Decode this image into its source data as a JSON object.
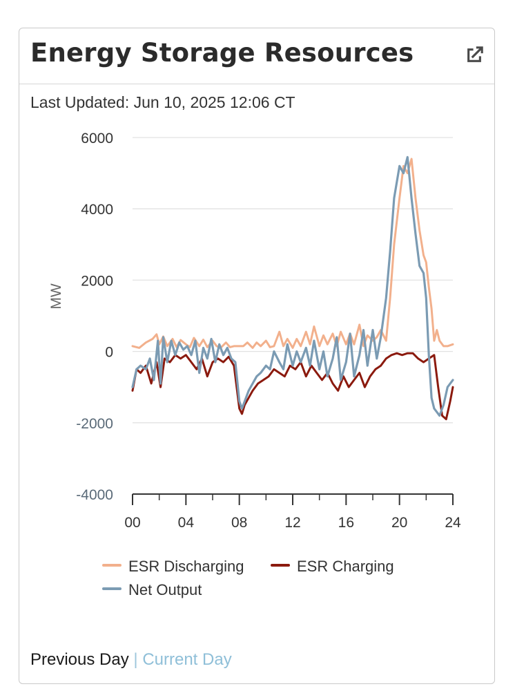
{
  "header": {
    "title": "Energy Storage Resources",
    "popout_icon": "external-link-icon"
  },
  "last_updated": "Last Updated: Jun 10, 2025 12:06 CT",
  "footer": {
    "previous_day": "Previous Day",
    "separator": "|",
    "current_day": "Current Day"
  },
  "chart_data": {
    "type": "line",
    "title": "",
    "xlabel": "",
    "ylabel": "MW",
    "xlim": [
      0,
      24
    ],
    "ylim": [
      -4000,
      6000
    ],
    "x_ticks": [
      "00",
      "04",
      "08",
      "12",
      "16",
      "20",
      "24"
    ],
    "y_ticks": [
      "6000",
      "4000",
      "2000",
      "0",
      "-2000",
      "-4000"
    ],
    "grid": "horizontal",
    "legend": "bottom",
    "series": [
      {
        "name": "ESR Discharging",
        "color": "#f2b08c",
        "x": [
          0,
          0.5,
          1,
          1.5,
          1.8,
          2,
          2.3,
          2.6,
          3,
          3.3,
          3.6,
          4,
          4.3,
          4.6,
          5,
          5.3,
          5.6,
          6,
          6.3,
          6.6,
          7,
          7.3,
          7.6,
          8,
          8.3,
          8.6,
          9,
          9.3,
          9.6,
          10,
          10.3,
          10.6,
          11,
          11.3,
          11.6,
          12,
          12.3,
          12.6,
          13,
          13.3,
          13.6,
          14,
          14.3,
          14.6,
          15,
          15.3,
          15.6,
          16,
          16.3,
          16.6,
          17,
          17.3,
          17.6,
          18,
          18.3,
          18.6,
          19,
          19.3,
          19.6,
          20,
          20.3,
          20.6,
          20.9,
          21.2,
          21.5,
          21.8,
          22,
          22.2,
          22.4,
          22.6,
          22.8,
          23,
          23.3,
          23.6,
          24
        ],
        "values": [
          150,
          100,
          250,
          350,
          480,
          200,
          420,
          150,
          350,
          120,
          320,
          200,
          120,
          380,
          150,
          330,
          120,
          300,
          150,
          100,
          250,
          120,
          150,
          150,
          150,
          250,
          100,
          250,
          150,
          300,
          120,
          150,
          550,
          150,
          350,
          100,
          350,
          150,
          550,
          200,
          700,
          150,
          450,
          200,
          500,
          150,
          550,
          200,
          500,
          200,
          750,
          150,
          450,
          300,
          400,
          600,
          300,
          1500,
          3000,
          4300,
          5200,
          5000,
          5400,
          4300,
          3400,
          2700,
          2500,
          1800,
          1200,
          300,
          600,
          300,
          150,
          150,
          200
        ]
      },
      {
        "name": "ESR Charging",
        "color": "#8b1a0e",
        "x": [
          0,
          0.3,
          0.6,
          1,
          1.4,
          1.8,
          2.1,
          2.4,
          2.8,
          3.2,
          3.6,
          4,
          4.4,
          4.8,
          5.2,
          5.6,
          6,
          6.4,
          6.8,
          7.2,
          7.6,
          8,
          8.2,
          8.4,
          8.7,
          9,
          9.4,
          9.8,
          10.2,
          10.6,
          11,
          11.4,
          11.8,
          12.2,
          12.6,
          13,
          13.4,
          13.8,
          14.2,
          14.6,
          15,
          15.4,
          15.8,
          16.2,
          16.6,
          17,
          17.4,
          17.8,
          18.2,
          18.6,
          19,
          19.4,
          19.8,
          20.2,
          20.6,
          21,
          21.4,
          21.8,
          22.2,
          22.6,
          22.9,
          23.2,
          23.5,
          23.8,
          24
        ],
        "values": [
          -1100,
          -500,
          -600,
          -400,
          -900,
          -300,
          -1000,
          -200,
          -300,
          -100,
          -200,
          -100,
          -300,
          -500,
          -200,
          -700,
          -300,
          -200,
          -300,
          -150,
          -400,
          -1600,
          -1750,
          -1500,
          -1300,
          -1100,
          -900,
          -800,
          -700,
          -500,
          -600,
          -700,
          -400,
          -500,
          -300,
          -700,
          -400,
          -600,
          -800,
          -600,
          -900,
          -1100,
          -700,
          -1000,
          -800,
          -600,
          -1000,
          -700,
          -500,
          -400,
          -200,
          -100,
          -50,
          -100,
          -50,
          -50,
          -200,
          -300,
          -200,
          -100,
          -1000,
          -1800,
          -1900,
          -1400,
          -1000
        ]
      },
      {
        "name": "Net Output",
        "color": "#7b9bb3",
        "x": [
          0,
          0.3,
          0.6,
          1,
          1.3,
          1.6,
          1.9,
          2.1,
          2.3,
          2.6,
          2.9,
          3.2,
          3.5,
          3.8,
          4.1,
          4.4,
          4.7,
          5,
          5.3,
          5.6,
          5.9,
          6.2,
          6.5,
          6.8,
          7.1,
          7.4,
          7.7,
          8,
          8.2,
          8.4,
          8.7,
          9,
          9.3,
          9.6,
          10,
          10.3,
          10.6,
          11,
          11.3,
          11.6,
          12,
          12.3,
          12.6,
          13,
          13.3,
          13.6,
          14,
          14.3,
          14.6,
          15,
          15.3,
          15.6,
          16,
          16.3,
          16.6,
          17,
          17.3,
          17.6,
          18,
          18.3,
          18.6,
          19,
          19.3,
          19.6,
          20,
          20.3,
          20.6,
          20.9,
          21.2,
          21.5,
          21.8,
          22,
          22.2,
          22.4,
          22.6,
          22.8,
          23,
          23.3,
          23.6,
          24
        ],
        "values": [
          -1000,
          -500,
          -400,
          -500,
          -200,
          -800,
          300,
          -900,
          400,
          -300,
          300,
          -100,
          250,
          50,
          150,
          -100,
          300,
          -600,
          100,
          -200,
          350,
          -300,
          200,
          -100,
          100,
          -200,
          -300,
          -1400,
          -1600,
          -1400,
          -1100,
          -900,
          -700,
          -600,
          -400,
          -500,
          0,
          -300,
          -500,
          200,
          -400,
          0,
          -300,
          100,
          -400,
          300,
          -500,
          0,
          -700,
          -200,
          400,
          -800,
          -300,
          500,
          -700,
          -100,
          600,
          -400,
          600,
          -200,
          400,
          1500,
          2800,
          4300,
          5200,
          5000,
          5450,
          4300,
          3300,
          2400,
          2200,
          1500,
          -100,
          -1300,
          -1600,
          -1700,
          -1800,
          -1500,
          -1000,
          -800
        ]
      }
    ]
  }
}
